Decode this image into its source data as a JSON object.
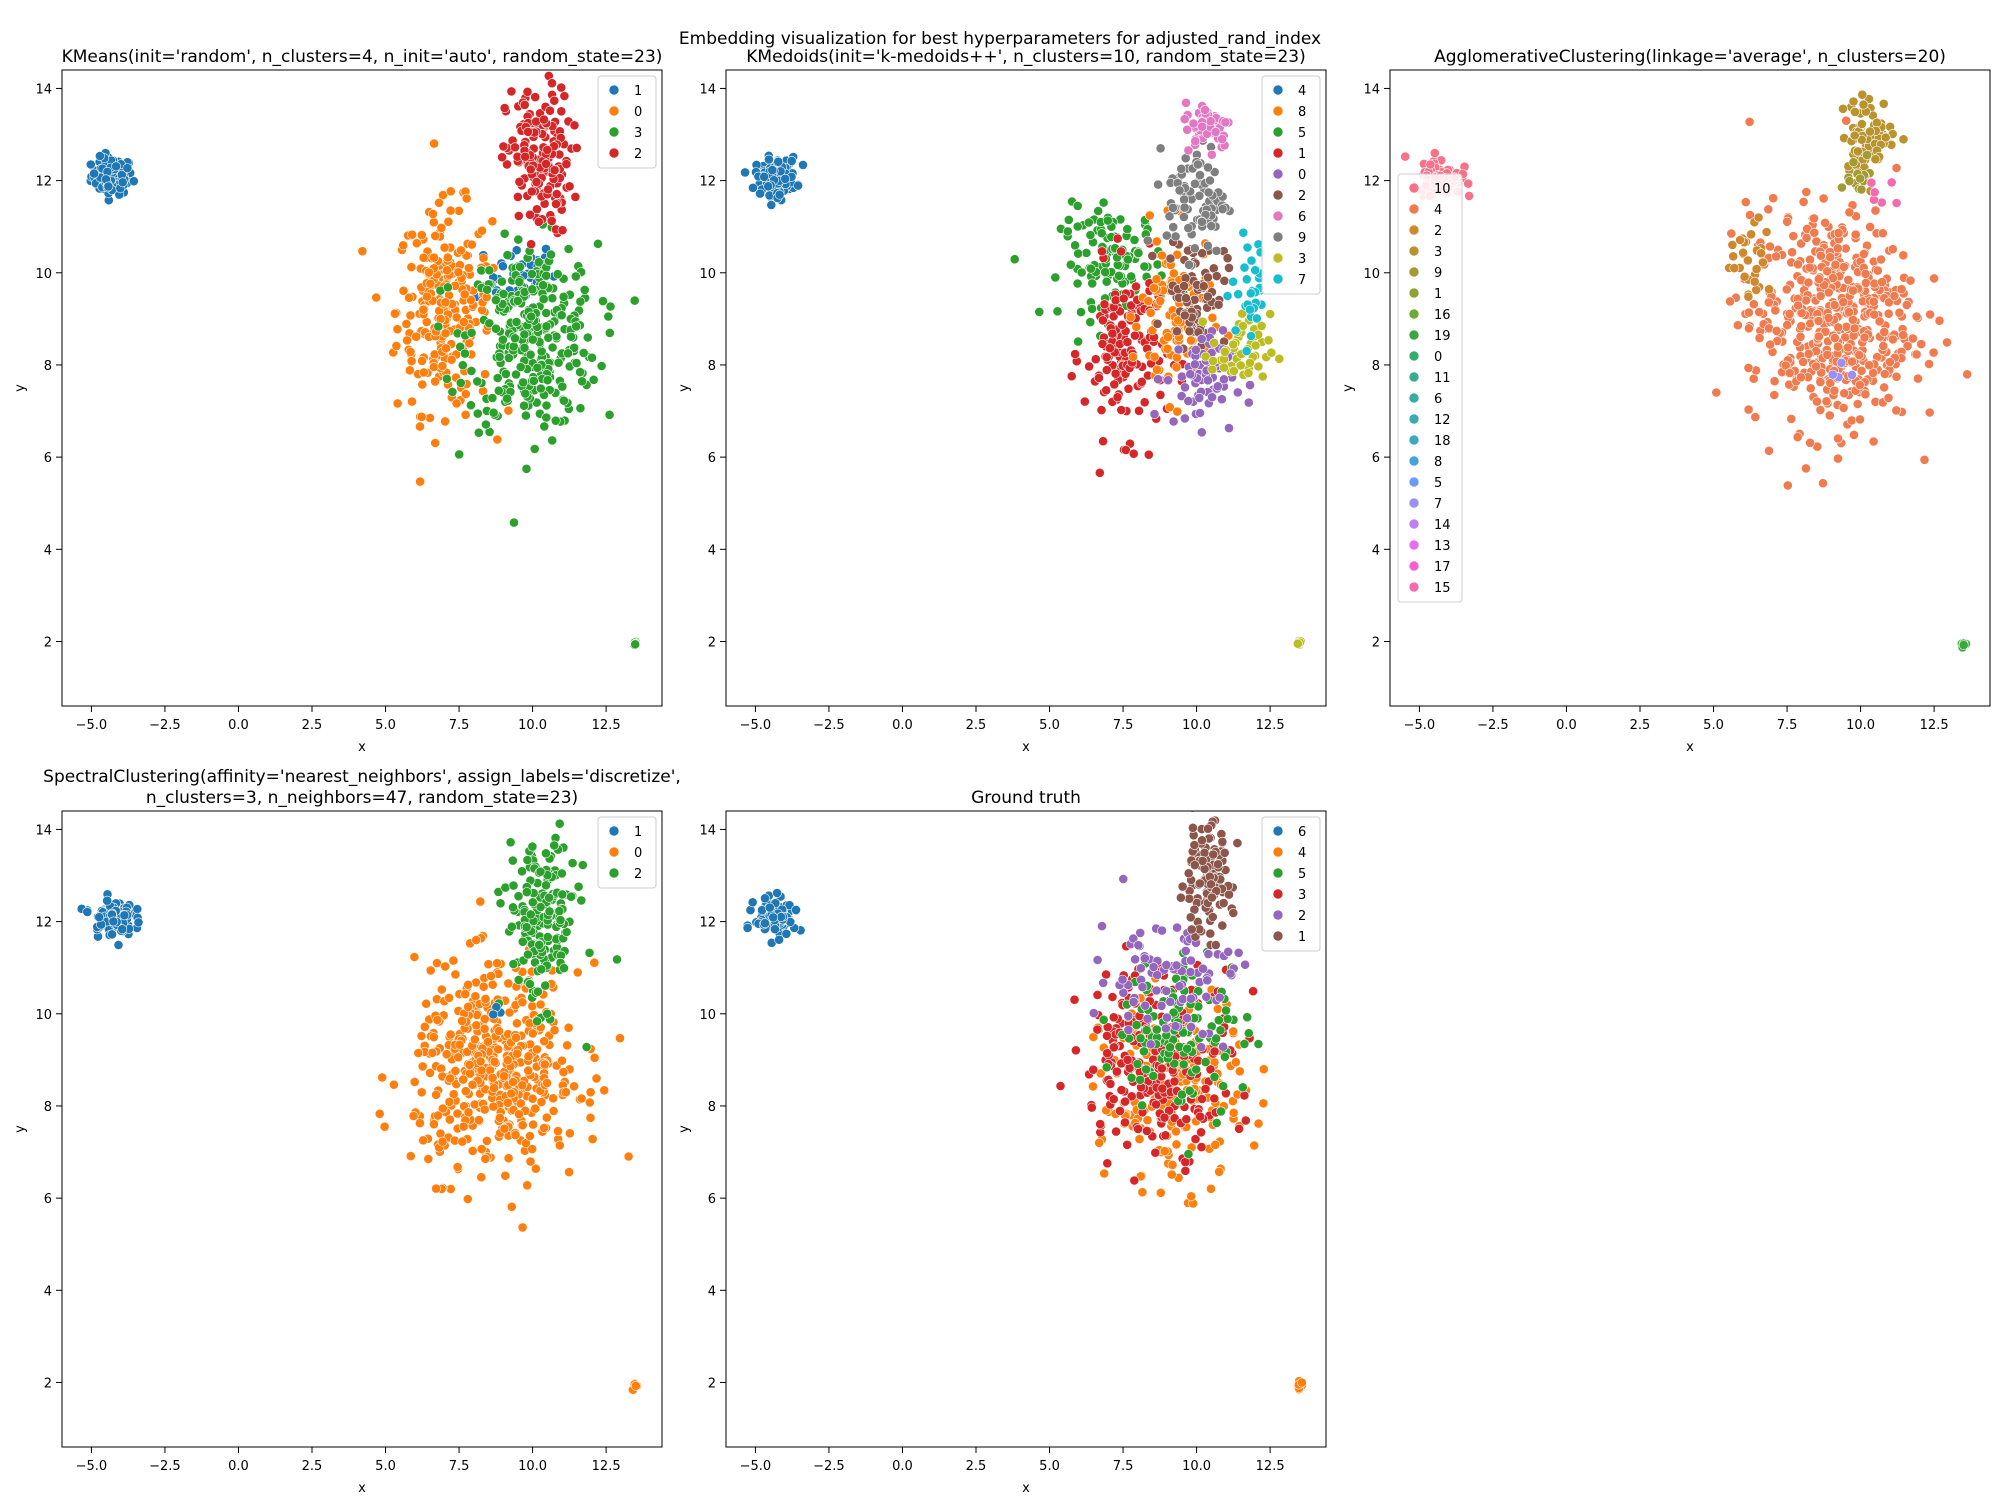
{
  "figure": {
    "suptitle": "Embedding visualization for best hyperparameters for adjusted_rand_index"
  },
  "chart_data": [
    {
      "type": "scatter",
      "title": [
        "KMeans(init='random', n_clusters=4, n_init='auto', random_state=23)"
      ],
      "xlabel": "x",
      "ylabel": "y",
      "xlim": [
        -6.0,
        14.4
      ],
      "ylim": [
        0.6,
        14.4
      ],
      "xticks": [
        -5.0,
        -2.5,
        0.0,
        2.5,
        5.0,
        7.5,
        10.0,
        12.5
      ],
      "xtick_labels": [
        "−5.0",
        "−2.5",
        "0.0",
        "2.5",
        "5.0",
        "7.5",
        "10.0",
        "12.5"
      ],
      "yticks": [
        2,
        4,
        6,
        8,
        10,
        12,
        14
      ],
      "ytick_labels": [
        "2",
        "4",
        "6",
        "8",
        "10",
        "12",
        "14"
      ],
      "legend": {
        "placement": "top-right",
        "entries": [
          {
            "label": "1",
            "color": "#1f77b4"
          },
          {
            "label": "0",
            "color": "#ff7f0e"
          },
          {
            "label": "3",
            "color": "#2ca02c"
          },
          {
            "label": "2",
            "color": "#d62728"
          }
        ]
      },
      "clusters": [
        {
          "label": "1",
          "cx": -4.3,
          "cy": 12.1,
          "sx": 0.35,
          "sy": 0.2,
          "n": 100
        },
        {
          "label": "1",
          "cx": 9.4,
          "cy": 10.0,
          "sx": 0.7,
          "sy": 0.35,
          "n": 50
        },
        {
          "label": "0",
          "cx": 7.0,
          "cy": 9.2,
          "sx": 0.8,
          "sy": 1.1,
          "n": 260
        },
        {
          "label": "3",
          "cx": 10.0,
          "cy": 8.6,
          "sx": 1.1,
          "sy": 1.0,
          "n": 320
        },
        {
          "label": "2",
          "cx": 10.2,
          "cy": 12.4,
          "sx": 0.55,
          "sy": 0.8,
          "n": 170
        },
        {
          "label": "3",
          "cx": 13.5,
          "cy": 1.95,
          "sx": 0.04,
          "sy": 0.04,
          "n": 8
        }
      ]
    },
    {
      "type": "scatter",
      "title": [
        "KMedoids(init='k-medoids++', n_clusters=10, random_state=23)"
      ],
      "xlabel": "x",
      "ylabel": "y",
      "xlim": [
        -6.0,
        14.4
      ],
      "ylim": [
        0.6,
        14.4
      ],
      "xticks": [
        -5.0,
        -2.5,
        0.0,
        2.5,
        5.0,
        7.5,
        10.0,
        12.5
      ],
      "xtick_labels": [
        "−5.0",
        "−2.5",
        "0.0",
        "2.5",
        "5.0",
        "7.5",
        "10.0",
        "12.5"
      ],
      "yticks": [
        2,
        4,
        6,
        8,
        10,
        12,
        14
      ],
      "ytick_labels": [
        "2",
        "4",
        "6",
        "8",
        "10",
        "12",
        "14"
      ],
      "legend": {
        "placement": "top-right",
        "entries": [
          {
            "label": "4",
            "color": "#1f77b4"
          },
          {
            "label": "8",
            "color": "#ff7f0e"
          },
          {
            "label": "5",
            "color": "#2ca02c"
          },
          {
            "label": "1",
            "color": "#d62728"
          },
          {
            "label": "0",
            "color": "#9467bd"
          },
          {
            "label": "2",
            "color": "#8c564b"
          },
          {
            "label": "6",
            "color": "#e377c2"
          },
          {
            "label": "9",
            "color": "#7f7f7f"
          },
          {
            "label": "3",
            "color": "#bcbd22"
          },
          {
            "label": "7",
            "color": "#17becf"
          }
        ]
      },
      "clusters": [
        {
          "label": "4",
          "cx": -4.3,
          "cy": 12.1,
          "sx": 0.35,
          "sy": 0.2,
          "n": 100
        },
        {
          "label": "5",
          "cx": 7.2,
          "cy": 10.2,
          "sx": 0.9,
          "sy": 0.6,
          "n": 120
        },
        {
          "label": "1",
          "cx": 7.6,
          "cy": 8.3,
          "sx": 0.7,
          "sy": 0.9,
          "n": 150
        },
        {
          "label": "8",
          "cx": 9.3,
          "cy": 9.0,
          "sx": 0.6,
          "sy": 0.9,
          "n": 110
        },
        {
          "label": "2",
          "cx": 10.0,
          "cy": 9.6,
          "sx": 0.5,
          "sy": 0.6,
          "n": 80
        },
        {
          "label": "0",
          "cx": 10.1,
          "cy": 7.7,
          "sx": 0.6,
          "sy": 0.5,
          "n": 70
        },
        {
          "label": "3",
          "cx": 11.5,
          "cy": 8.3,
          "sx": 0.5,
          "sy": 0.4,
          "n": 50
        },
        {
          "label": "7",
          "cx": 11.9,
          "cy": 9.6,
          "sx": 0.35,
          "sy": 0.6,
          "n": 30
        },
        {
          "label": "9",
          "cx": 10.0,
          "cy": 11.6,
          "sx": 0.5,
          "sy": 0.6,
          "n": 90
        },
        {
          "label": "6",
          "cx": 10.4,
          "cy": 13.2,
          "sx": 0.4,
          "sy": 0.25,
          "n": 60
        },
        {
          "label": "3",
          "cx": 13.5,
          "cy": 1.95,
          "sx": 0.04,
          "sy": 0.04,
          "n": 8
        }
      ]
    },
    {
      "type": "scatter",
      "title": [
        "AgglomerativeClustering(linkage='average', n_clusters=20)"
      ],
      "xlabel": "x",
      "ylabel": "y",
      "xlim": [
        -6.0,
        14.4
      ],
      "ylim": [
        0.6,
        14.4
      ],
      "xticks": [
        -5.0,
        -2.5,
        0.0,
        2.5,
        5.0,
        7.5,
        10.0,
        12.5
      ],
      "xtick_labels": [
        "−5.0",
        "−2.5",
        "0.0",
        "2.5",
        "5.0",
        "7.5",
        "10.0",
        "12.5"
      ],
      "yticks": [
        2,
        4,
        6,
        8,
        10,
        12,
        14
      ],
      "ytick_labels": [
        "2",
        "4",
        "6",
        "8",
        "10",
        "12",
        "14"
      ],
      "legend": {
        "placement": "center-left",
        "entries": [
          {
            "label": "10",
            "color": "#f77189"
          },
          {
            "label": "4",
            "color": "#f07b4f"
          },
          {
            "label": "2",
            "color": "#d0882f"
          },
          {
            "label": "3",
            "color": "#b8932e"
          },
          {
            "label": "9",
            "color": "#a39a31"
          },
          {
            "label": "1",
            "color": "#8ea131"
          },
          {
            "label": "16",
            "color": "#6fa935"
          },
          {
            "label": "19",
            "color": "#3aa93c"
          },
          {
            "label": "0",
            "color": "#35ad6e"
          },
          {
            "label": "11",
            "color": "#37ad8e"
          },
          {
            "label": "6",
            "color": "#39aba2"
          },
          {
            "label": "12",
            "color": "#3aaab3"
          },
          {
            "label": "18",
            "color": "#3da8c4"
          },
          {
            "label": "8",
            "color": "#45a4db"
          },
          {
            "label": "5",
            "color": "#6b9cf3"
          },
          {
            "label": "7",
            "color": "#9b8ff4"
          },
          {
            "label": "14",
            "color": "#c17ef3"
          },
          {
            "label": "13",
            "color": "#e66ff0"
          },
          {
            "label": "17",
            "color": "#f562cf"
          },
          {
            "label": "15",
            "color": "#f66bad"
          }
        ]
      },
      "clusters": [
        {
          "label": "10",
          "cx": -4.3,
          "cy": 12.1,
          "sx": 0.35,
          "sy": 0.2,
          "n": 100
        },
        {
          "label": "4",
          "cx": 9.0,
          "cy": 9.0,
          "sx": 1.4,
          "sy": 1.2,
          "n": 520
        },
        {
          "label": "2",
          "cx": 6.3,
          "cy": 10.3,
          "sx": 0.35,
          "sy": 0.4,
          "n": 30
        },
        {
          "label": "3",
          "cx": 10.3,
          "cy": 13.0,
          "sx": 0.45,
          "sy": 0.4,
          "n": 80
        },
        {
          "label": "9",
          "cx": 9.9,
          "cy": 12.0,
          "sx": 0.3,
          "sy": 0.3,
          "n": 15
        },
        {
          "label": "15",
          "cx": 10.8,
          "cy": 11.7,
          "sx": 0.3,
          "sy": 0.2,
          "n": 6
        },
        {
          "label": "7",
          "cx": 9.2,
          "cy": 7.9,
          "sx": 0.3,
          "sy": 0.2,
          "n": 4
        },
        {
          "label": "19",
          "cx": 13.5,
          "cy": 1.95,
          "sx": 0.04,
          "sy": 0.04,
          "n": 8
        }
      ]
    },
    {
      "type": "scatter",
      "title": [
        "SpectralClustering(affinity='nearest_neighbors', assign_labels='discretize',",
        "n_clusters=3, n_neighbors=47, random_state=23)"
      ],
      "xlabel": "x",
      "ylabel": "y",
      "xlim": [
        -6.0,
        14.4
      ],
      "ylim": [
        0.6,
        14.4
      ],
      "xticks": [
        -5.0,
        -2.5,
        0.0,
        2.5,
        5.0,
        7.5,
        10.0,
        12.5
      ],
      "xtick_labels": [
        "−5.0",
        "−2.5",
        "0.0",
        "2.5",
        "5.0",
        "7.5",
        "10.0",
        "12.5"
      ],
      "yticks": [
        2,
        4,
        6,
        8,
        10,
        12,
        14
      ],
      "ytick_labels": [
        "2",
        "4",
        "6",
        "8",
        "10",
        "12",
        "14"
      ],
      "legend": {
        "placement": "top-right",
        "entries": [
          {
            "label": "1",
            "color": "#1f77b4"
          },
          {
            "label": "0",
            "color": "#ff7f0e"
          },
          {
            "label": "2",
            "color": "#2ca02c"
          }
        ]
      },
      "clusters": [
        {
          "label": "1",
          "cx": -4.3,
          "cy": 12.1,
          "sx": 0.35,
          "sy": 0.2,
          "n": 100
        },
        {
          "label": "0",
          "cx": 8.8,
          "cy": 8.8,
          "sx": 1.4,
          "sy": 1.1,
          "n": 480
        },
        {
          "label": "2",
          "cx": 10.3,
          "cy": 12.0,
          "sx": 0.6,
          "sy": 0.9,
          "n": 180
        },
        {
          "label": "1",
          "cx": 8.8,
          "cy": 10.1,
          "sx": 0.15,
          "sy": 0.1,
          "n": 3
        },
        {
          "label": "0",
          "cx": 13.5,
          "cy": 1.95,
          "sx": 0.04,
          "sy": 0.04,
          "n": 8
        }
      ]
    },
    {
      "type": "scatter",
      "title": [
        "Ground truth"
      ],
      "xlabel": "x",
      "ylabel": "y",
      "xlim": [
        -6.0,
        14.4
      ],
      "ylim": [
        0.6,
        14.4
      ],
      "xticks": [
        -5.0,
        -2.5,
        0.0,
        2.5,
        5.0,
        7.5,
        10.0,
        12.5
      ],
      "xtick_labels": [
        "−5.0",
        "−2.5",
        "0.0",
        "2.5",
        "5.0",
        "7.5",
        "10.0",
        "12.5"
      ],
      "yticks": [
        2,
        4,
        6,
        8,
        10,
        12,
        14
      ],
      "ytick_labels": [
        "2",
        "4",
        "6",
        "8",
        "10",
        "12",
        "14"
      ],
      "legend": {
        "placement": "top-right",
        "entries": [
          {
            "label": "6",
            "color": "#1f77b4"
          },
          {
            "label": "4",
            "color": "#ff7f0e"
          },
          {
            "label": "5",
            "color": "#2ca02c"
          },
          {
            "label": "3",
            "color": "#d62728"
          },
          {
            "label": "2",
            "color": "#9467bd"
          },
          {
            "label": "1",
            "color": "#8c564b"
          }
        ]
      },
      "clusters": [
        {
          "label": "6",
          "cx": -4.3,
          "cy": 12.1,
          "sx": 0.35,
          "sy": 0.2,
          "n": 100
        },
        {
          "label": "4",
          "cx": 9.2,
          "cy": 8.3,
          "sx": 1.2,
          "sy": 1.0,
          "n": 200
        },
        {
          "label": "3",
          "cx": 8.7,
          "cy": 9.1,
          "sx": 1.3,
          "sy": 1.0,
          "n": 240
        },
        {
          "label": "5",
          "cx": 9.5,
          "cy": 9.6,
          "sx": 1.1,
          "sy": 0.9,
          "n": 110
        },
        {
          "label": "2",
          "cx": 9.0,
          "cy": 10.8,
          "sx": 1.2,
          "sy": 0.7,
          "n": 90
        },
        {
          "label": "1",
          "cx": 10.3,
          "cy": 12.9,
          "sx": 0.45,
          "sy": 0.6,
          "n": 120
        },
        {
          "label": "4",
          "cx": 13.5,
          "cy": 1.95,
          "sx": 0.04,
          "sy": 0.04,
          "n": 8
        }
      ]
    }
  ]
}
